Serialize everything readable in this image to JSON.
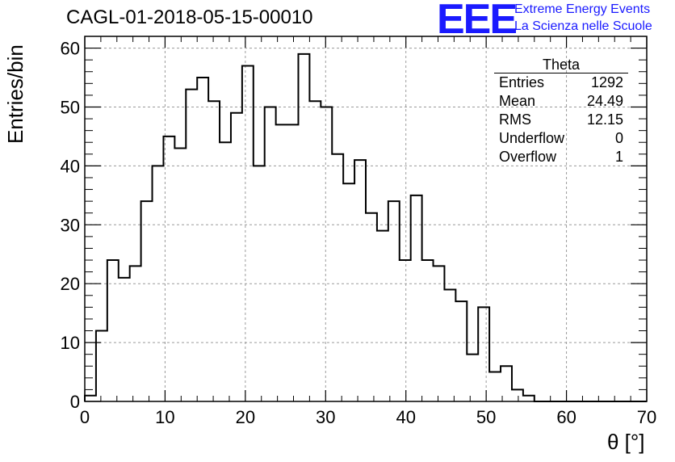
{
  "title": "CAGL-01-2018-05-15-00010",
  "logo": {
    "mark": "EEE",
    "line1": "Extreme Energy Events",
    "line2": "La Scienza nelle Scuole",
    "color": "#1a1aff"
  },
  "stats_box": {
    "title": "Theta",
    "rows": [
      {
        "label": "Entries",
        "value": "1292"
      },
      {
        "label": "Mean",
        "value": "24.49"
      },
      {
        "label": "RMS",
        "value": "12.15"
      },
      {
        "label": "Underflow",
        "value": "0"
      },
      {
        "label": "Overflow",
        "value": "1"
      }
    ]
  },
  "chart_data": {
    "type": "bar",
    "histogram": true,
    "xlabel": "θ [°]",
    "ylabel": "Entries/bin",
    "xlim": [
      0,
      70
    ],
    "ylim": [
      0,
      62
    ],
    "bin_width": 1.4,
    "x_ticks": [
      "0",
      "10",
      "20",
      "30",
      "40",
      "50",
      "60",
      "70"
    ],
    "y_ticks": [
      "0",
      "10",
      "20",
      "30",
      "40",
      "50",
      "60"
    ],
    "grid": true,
    "values": [
      1,
      12,
      24,
      21,
      23,
      34,
      40,
      45,
      43,
      53,
      55,
      51,
      44,
      49,
      57,
      40,
      50,
      47,
      47,
      59,
      51,
      50,
      42,
      37,
      41,
      32,
      29,
      34,
      24,
      35,
      24,
      23,
      19,
      17,
      8,
      16,
      5,
      6,
      2,
      1,
      0,
      0,
      0,
      0,
      0,
      0,
      0,
      0,
      0,
      0
    ]
  }
}
